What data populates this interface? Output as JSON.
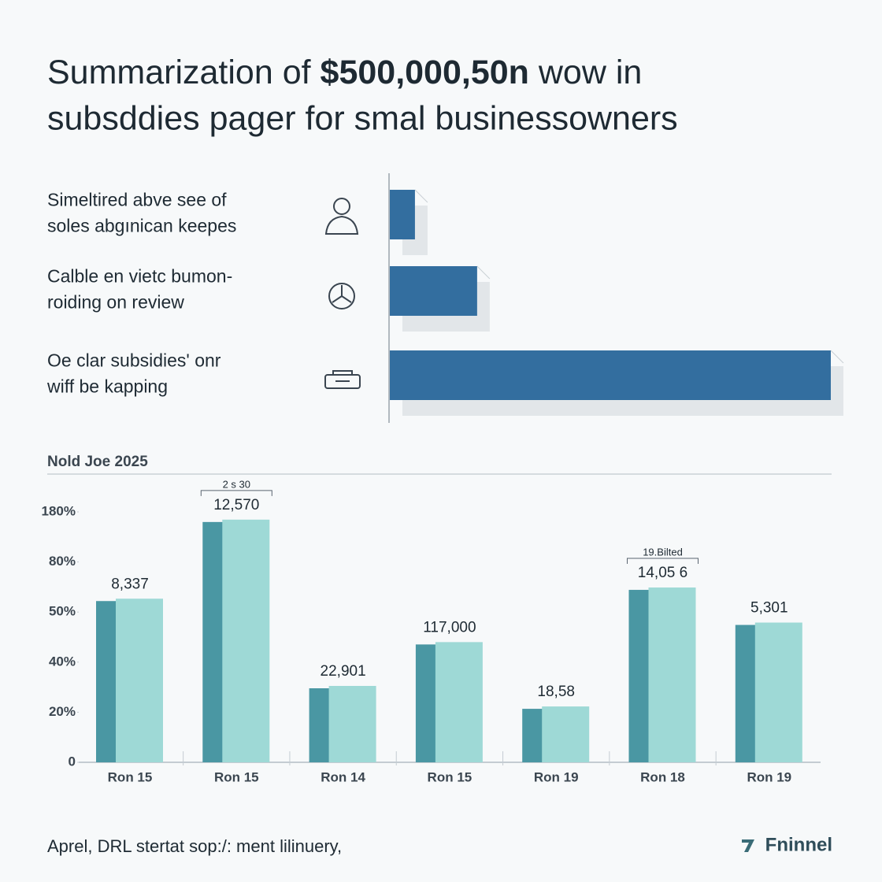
{
  "title": {
    "line1_start": "Summarization of ",
    "line1_bold": "$500,000,50n",
    "line1_end": " wow  in",
    "line2": "subsddies pager for smal businessowners"
  },
  "chart_data": [
    {
      "type": "hbar",
      "categories": [
        [
          "Simeltired  abve see of",
          "soles abgınican keepes"
        ],
        [
          "Calble en vietc bumon-",
          "roiding on review"
        ],
        [
          "Oe clar subsidies' onr",
          "wiff be kapping"
        ]
      ],
      "values": [
        5.7,
        19.8,
        100
      ],
      "color": "#336e9f",
      "xlim": [
        0,
        100
      ]
    },
    {
      "type": "bar",
      "title": "Nold Joe 2025",
      "categories": [
        "Ron 15",
        "Ron 15",
        "Ron 14",
        "Ron 15",
        "Ron 19",
        "Ron 18",
        "Ron 19"
      ],
      "values": [
        58,
        164.5,
        30.5,
        44,
        22.3,
        64.7,
        47.9
      ],
      "annotations": [
        "8,337",
        "12,570",
        "22,901",
        "117,000",
        "18,58",
        "14,05 6",
        "5,301"
      ],
      "notes": [
        null,
        "2 s 30",
        null,
        null,
        null,
        "19.Bilted",
        null
      ],
      "colors": [
        "#4a97a3",
        "#9ed9d6"
      ],
      "ylim": [
        0,
        180
      ],
      "yticks": [
        0,
        {
          "value": 20,
          "label": "20%"
        },
        {
          "value": 40,
          "label": "40%"
        },
        {
          "value": 50,
          "label": "50%"
        },
        {
          "value": 80,
          "label": "80%"
        },
        {
          "value": 180,
          "label": "180%"
        }
      ]
    }
  ],
  "footer": {
    "source": "Aprel, DRL stertat sop:/: ment lilinuery,",
    "logo": "Fninnel"
  }
}
